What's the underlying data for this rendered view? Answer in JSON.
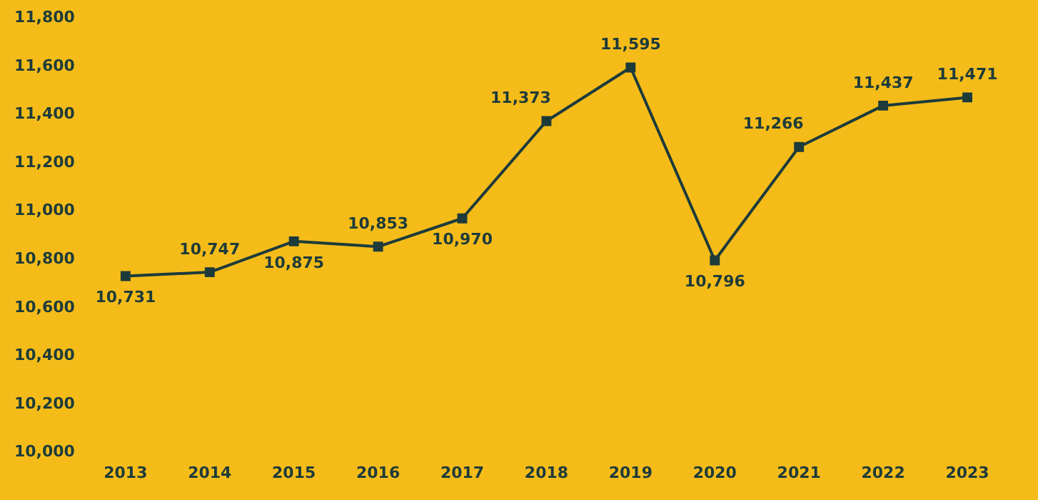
{
  "chart_data": {
    "type": "line",
    "categories": [
      "2013",
      "2014",
      "2015",
      "2016",
      "2017",
      "2018",
      "2019",
      "2020",
      "2021",
      "2022",
      "2023"
    ],
    "series": [
      {
        "color": "#1d3b3a",
        "values": [
          10731,
          10747,
          10875,
          10853,
          10970,
          11373,
          11595,
          10796,
          11266,
          11437,
          11471
        ],
        "value_labels": [
          "10,731",
          "10,747",
          "10,875",
          "10,853",
          "10,970",
          "11,373",
          "11,595",
          "10,796",
          "11,266",
          "11,437",
          "11,471"
        ]
      }
    ],
    "ylim": [
      10000,
      11800
    ],
    "yticks": [
      {
        "value": 10000,
        "label": "10,000"
      },
      {
        "value": 10200,
        "label": "10,200"
      },
      {
        "value": 10400,
        "label": "10,400"
      },
      {
        "value": 10600,
        "label": "10,600"
      },
      {
        "value": 10800,
        "label": "10,800"
      },
      {
        "value": 11000,
        "label": "11,000"
      },
      {
        "value": 11200,
        "label": "11,200"
      },
      {
        "value": 11400,
        "label": "11,400"
      },
      {
        "value": 11600,
        "label": "11,600"
      },
      {
        "value": 11800,
        "label": "11,800"
      }
    ],
    "grid": false,
    "legend": false,
    "marker": "square",
    "line_style": "solid"
  }
}
